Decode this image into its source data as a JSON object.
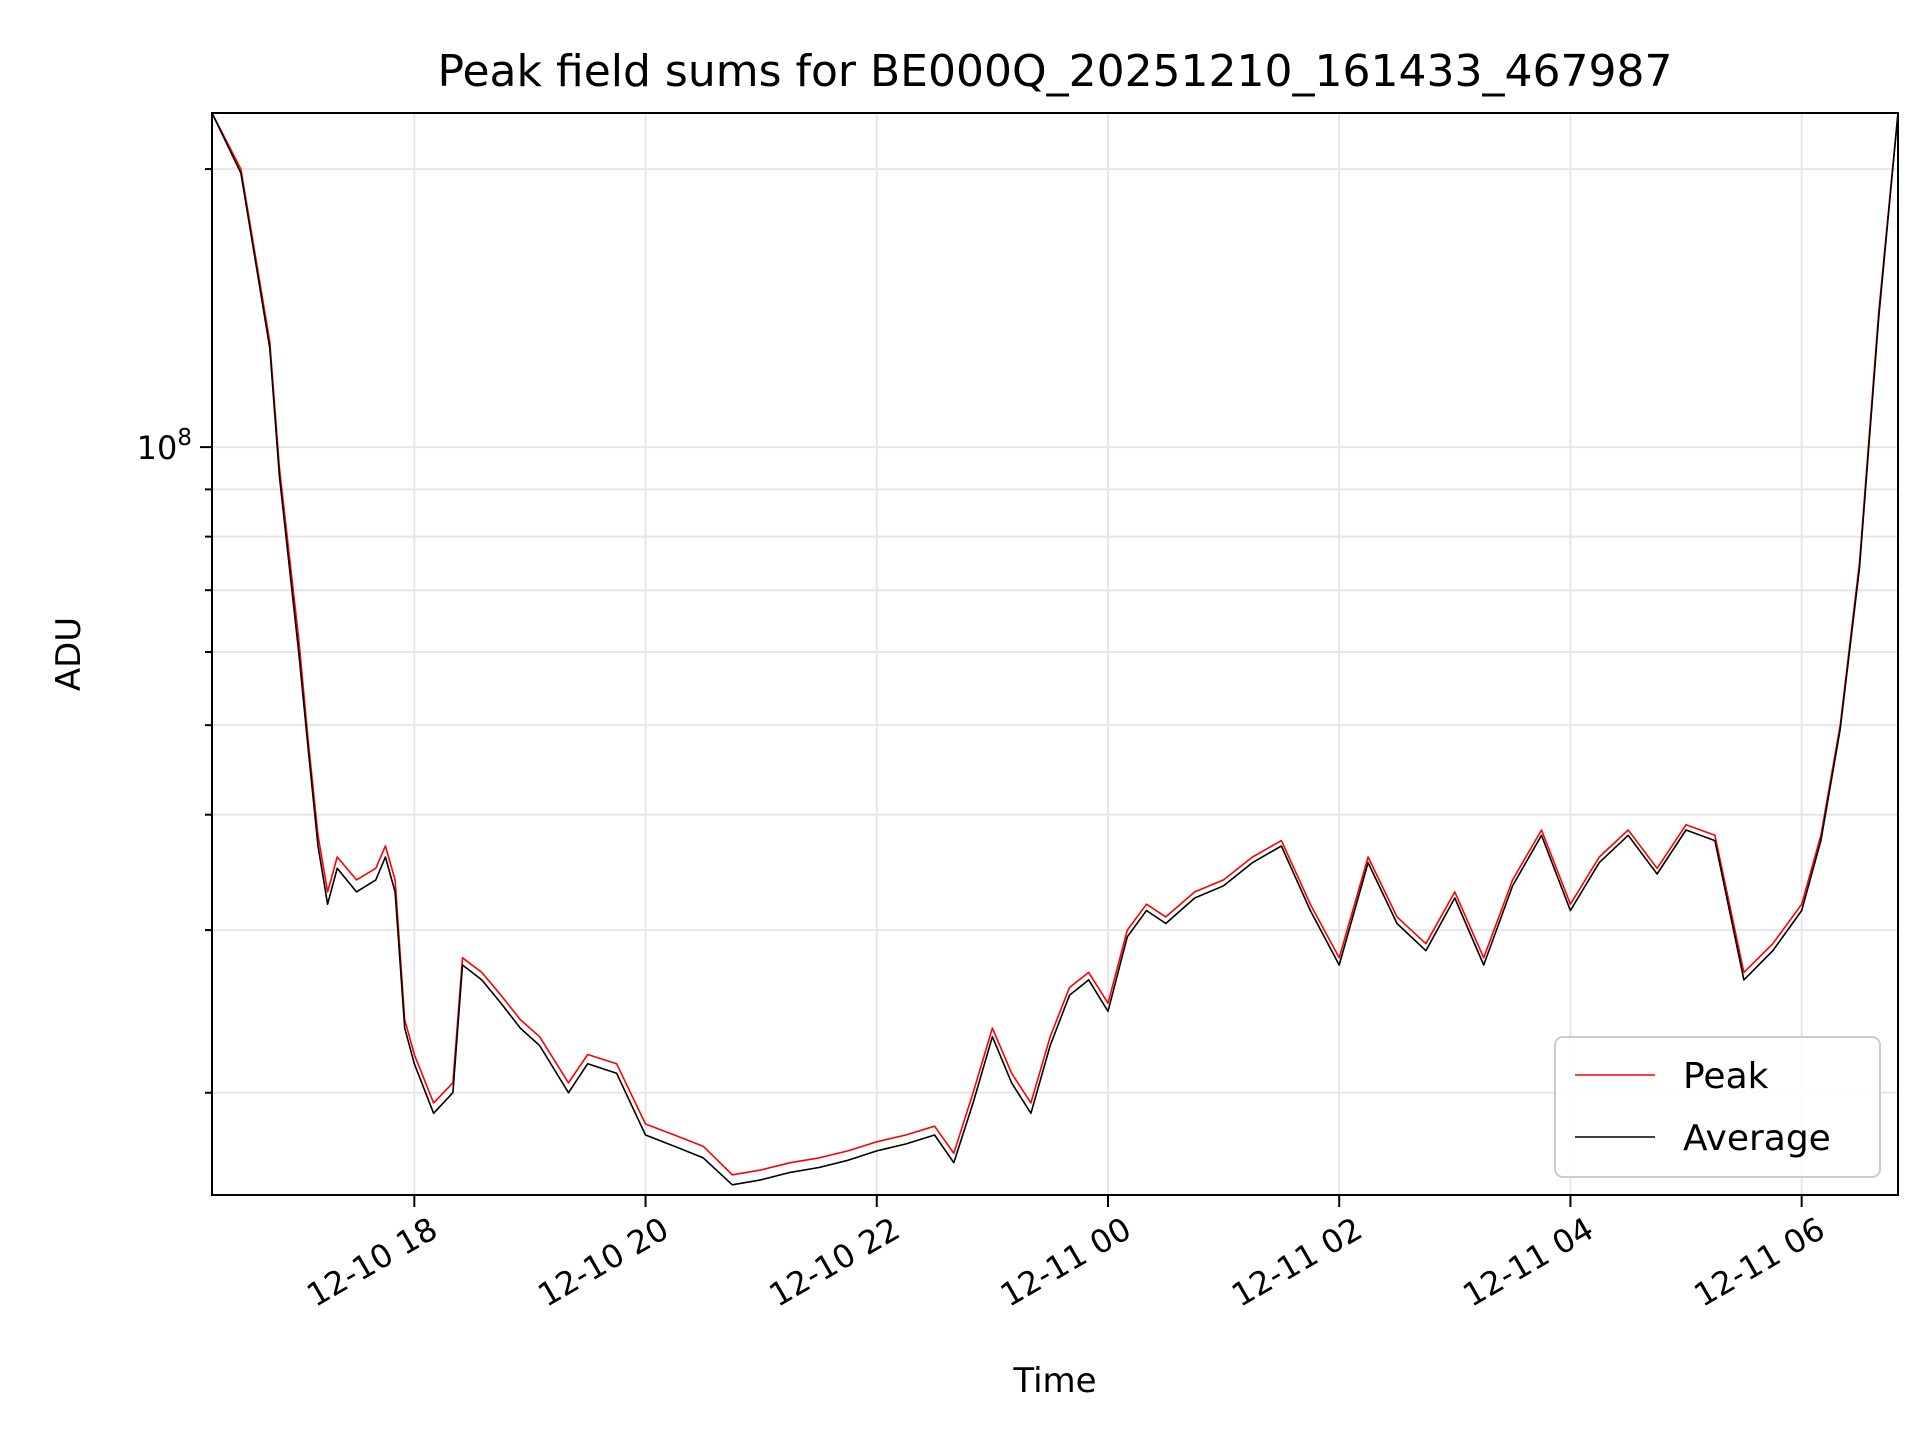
{
  "chart_data": {
    "type": "line",
    "title": "Peak field sums for BE000Q_20251210_161433_467987",
    "xlabel": "Time",
    "ylabel": "ADU",
    "yscale": "log",
    "grid": true,
    "legend_position": "lower-right",
    "x_ticks": [
      "12-10 18",
      "12-10 20",
      "12-10 22",
      "12-11 00",
      "12-11 02",
      "12-11 04",
      "12-11 06"
    ],
    "y_ticks": [
      {
        "base": "10",
        "exp": "8"
      }
    ],
    "x_range": [
      "2025-12-10 16:15",
      "2025-12-11 06:50"
    ],
    "ylim": [
      15500000,
      230000000
    ],
    "x": [
      "2025-12-10 16:15",
      "2025-12-10 16:30",
      "2025-12-10 16:45",
      "2025-12-10 16:50",
      "2025-12-10 17:00",
      "2025-12-10 17:05",
      "2025-12-10 17:10",
      "2025-12-10 17:15",
      "2025-12-10 17:20",
      "2025-12-10 17:30",
      "2025-12-10 17:40",
      "2025-12-10 17:45",
      "2025-12-10 17:50",
      "2025-12-10 17:55",
      "2025-12-10 18:00",
      "2025-12-10 18:10",
      "2025-12-10 18:20",
      "2025-12-10 18:25",
      "2025-12-10 18:35",
      "2025-12-10 18:45",
      "2025-12-10 18:55",
      "2025-12-10 19:05",
      "2025-12-10 19:20",
      "2025-12-10 19:30",
      "2025-12-10 19:45",
      "2025-12-10 20:00",
      "2025-12-10 20:15",
      "2025-12-10 20:30",
      "2025-12-10 20:45",
      "2025-12-10 21:00",
      "2025-12-10 21:15",
      "2025-12-10 21:30",
      "2025-12-10 21:45",
      "2025-12-10 22:00",
      "2025-12-10 22:15",
      "2025-12-10 22:30",
      "2025-12-10 22:40",
      "2025-12-10 22:50",
      "2025-12-10 23:00",
      "2025-12-10 23:10",
      "2025-12-10 23:20",
      "2025-12-10 23:30",
      "2025-12-10 23:40",
      "2025-12-10 23:50",
      "2025-12-11 00:00",
      "2025-12-11 00:10",
      "2025-12-11 00:20",
      "2025-12-11 00:30",
      "2025-12-11 00:45",
      "2025-12-11 01:00",
      "2025-12-11 01:15",
      "2025-12-11 01:30",
      "2025-12-11 01:45",
      "2025-12-11 02:00",
      "2025-12-11 02:15",
      "2025-12-11 02:30",
      "2025-12-11 02:45",
      "2025-12-11 03:00",
      "2025-12-11 03:15",
      "2025-12-11 03:30",
      "2025-12-11 03:45",
      "2025-12-11 04:00",
      "2025-12-11 04:15",
      "2025-12-11 04:30",
      "2025-12-11 04:45",
      "2025-12-11 05:00",
      "2025-12-11 05:15",
      "2025-12-11 05:30",
      "2025-12-11 05:45",
      "2025-12-11 06:00",
      "2025-12-11 06:10",
      "2025-12-11 06:20",
      "2025-12-11 06:30",
      "2025-12-11 06:40",
      "2025-12-11 06:50"
    ],
    "series": [
      {
        "name": "Peak",
        "color": "#ff0000",
        "values": [
          230000000,
          200000000,
          130000000,
          95000000,
          62000000,
          48000000,
          38000000,
          33000000,
          36000000,
          34000000,
          35000000,
          37000000,
          34000000,
          24000000,
          22000000,
          19500000,
          20500000,
          28000000,
          27000000,
          25500000,
          24000000,
          23000000,
          20500000,
          22000000,
          21500000,
          18500000,
          18000000,
          17500000,
          16300000,
          16500000,
          16800000,
          17000000,
          17300000,
          17700000,
          18000000,
          18400000,
          17200000,
          20000000,
          23500000,
          21000000,
          19500000,
          23000000,
          26000000,
          27000000,
          25000000,
          30000000,
          32000000,
          31000000,
          33000000,
          34000000,
          36000000,
          37500000,
          32000000,
          28000000,
          36000000,
          31000000,
          29000000,
          33000000,
          28000000,
          34000000,
          38500000,
          32000000,
          36000000,
          38500000,
          35000000,
          39000000,
          38000000,
          27000000,
          29000000,
          32000000,
          38000000,
          50000000,
          75000000,
          140000000,
          230000000
        ]
      },
      {
        "name": "Average",
        "color": "#000000",
        "values": [
          230000000,
          198000000,
          128000000,
          93000000,
          60000000,
          47000000,
          37000000,
          32000000,
          35000000,
          33000000,
          34000000,
          36000000,
          33000000,
          23500000,
          21500000,
          19000000,
          20000000,
          27500000,
          26500000,
          25000000,
          23500000,
          22500000,
          20000000,
          21500000,
          21000000,
          18000000,
          17500000,
          17000000,
          15900000,
          16100000,
          16400000,
          16600000,
          16900000,
          17300000,
          17600000,
          18000000,
          16800000,
          19500000,
          23000000,
          20500000,
          19000000,
          22500000,
          25500000,
          26500000,
          24500000,
          29500000,
          31500000,
          30500000,
          32500000,
          33500000,
          35500000,
          37000000,
          31500000,
          27500000,
          35500000,
          30500000,
          28500000,
          32500000,
          27500000,
          33500000,
          38000000,
          31500000,
          35500000,
          38000000,
          34500000,
          38500000,
          37500000,
          26500000,
          28500000,
          31500000,
          37500000,
          49500000,
          74000000,
          138000000,
          230000000
        ]
      }
    ]
  }
}
